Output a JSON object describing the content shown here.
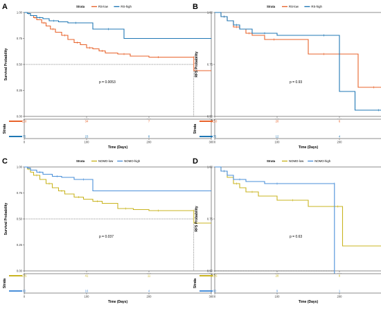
{
  "chart_data": [
    {
      "type": "line",
      "panel_label": "A",
      "legend_title": "Strata",
      "xlabel": "Time (Days)",
      "ylabel": "Survival Probability",
      "xlim": [
        0,
        300
      ],
      "ylim": [
        0,
        1
      ],
      "xticks": [
        "0",
        "100",
        "200",
        "300"
      ],
      "yticks": [
        "0.00",
        "0.25",
        "0.50",
        "0.75",
        "1.00"
      ],
      "p_value": "p = 0.0053",
      "median_time": 272,
      "series": [
        {
          "name": "RS-low",
          "color": "#e8632b",
          "x": [
            0,
            5,
            10,
            15,
            20,
            28,
            35,
            42,
            50,
            60,
            70,
            80,
            90,
            100,
            110,
            120,
            130,
            150,
            170,
            200,
            230,
            272,
            272,
            300
          ],
          "y": [
            1.0,
            0.99,
            0.97,
            0.95,
            0.93,
            0.9,
            0.87,
            0.84,
            0.81,
            0.78,
            0.74,
            0.71,
            0.69,
            0.66,
            0.65,
            0.63,
            0.61,
            0.6,
            0.58,
            0.57,
            0.57,
            0.57,
            0.44,
            0.44
          ]
        },
        {
          "name": "RS-high",
          "color": "#1f77b4",
          "x": [
            0,
            5,
            10,
            20,
            30,
            40,
            55,
            70,
            95,
            110,
            160,
            300
          ],
          "y": [
            1.0,
            0.99,
            0.97,
            0.95,
            0.94,
            0.92,
            0.91,
            0.9,
            0.9,
            0.84,
            0.75,
            0.75
          ]
        }
      ],
      "risk_table": {
        "title": "Strata",
        "rows": [
          {
            "color": "#e8632b",
            "counts": [
              "110",
              "34",
              "7",
              "1"
            ]
          },
          {
            "color": "#1f77b4",
            "counts": [
              "75",
              "23",
              "8",
              "1"
            ]
          }
        ]
      }
    },
    {
      "type": "line",
      "panel_label": "B",
      "legend_title": "Strata",
      "xlabel": "Time (Days)",
      "ylabel": "RFS Probability",
      "xlim": [
        0,
        300
      ],
      "ylim": [
        0.5,
        1
      ],
      "xticks": [
        "0",
        "100",
        "200",
        "300"
      ],
      "yticks": [
        "0.50",
        "0.75",
        "1.00"
      ],
      "p_value": "p = 0.93",
      "series": [
        {
          "name": "RS-low",
          "color": "#e8632b",
          "x": [
            0,
            10,
            20,
            30,
            40,
            50,
            60,
            80,
            110,
            150,
            200,
            230,
            280
          ],
          "y": [
            1.0,
            0.98,
            0.96,
            0.93,
            0.92,
            0.9,
            0.89,
            0.87,
            0.87,
            0.8,
            0.8,
            0.64,
            0.64
          ]
        },
        {
          "name": "RS-high",
          "color": "#1f77b4",
          "x": [
            0,
            10,
            20,
            30,
            40,
            60,
            100,
            150,
            200,
            225,
            300
          ],
          "y": [
            1.0,
            0.98,
            0.96,
            0.94,
            0.92,
            0.9,
            0.89,
            0.89,
            0.62,
            0.53,
            0.53
          ]
        }
      ],
      "risk_table": {
        "title": "Strata",
        "rows": [
          {
            "color": "#e8632b",
            "counts": [
              "110",
              "20",
              "6",
              "0"
            ]
          },
          {
            "color": "#1f77b4",
            "counts": [
              "75",
              "12",
              "4",
              "0"
            ]
          }
        ]
      }
    },
    {
      "type": "line",
      "panel_label": "C",
      "legend_title": "Strata",
      "xlabel": "Time (Days)",
      "ylabel": "Survival Probability",
      "xlim": [
        0,
        300
      ],
      "ylim": [
        0,
        1
      ],
      "xticks": [
        "0",
        "100",
        "200",
        "300"
      ],
      "yticks": [
        "0.00",
        "0.25",
        "0.50",
        "0.75",
        "1.00"
      ],
      "p_value": "p = 0.037",
      "median_time": 272,
      "series": [
        {
          "name": "NOMO-low",
          "color": "#c9b420",
          "x": [
            0,
            5,
            10,
            15,
            25,
            35,
            45,
            55,
            65,
            80,
            95,
            110,
            125,
            150,
            175,
            200,
            230,
            272,
            272,
            300
          ],
          "y": [
            1.0,
            0.98,
            0.95,
            0.92,
            0.88,
            0.84,
            0.8,
            0.77,
            0.74,
            0.71,
            0.69,
            0.67,
            0.65,
            0.6,
            0.59,
            0.58,
            0.58,
            0.58,
            0.46,
            0.46
          ]
        },
        {
          "name": "NOMO-high",
          "color": "#4a8fd9",
          "x": [
            0,
            5,
            10,
            20,
            30,
            45,
            60,
            80,
            110,
            300
          ],
          "y": [
            1.0,
            0.99,
            0.97,
            0.95,
            0.93,
            0.91,
            0.9,
            0.88,
            0.77,
            0.77
          ]
        }
      ],
      "risk_table": {
        "title": "Strata",
        "rows": [
          {
            "color": "#c9b420",
            "counts": [
              "125",
              "41",
              "11",
              "1"
            ]
          },
          {
            "color": "#4a8fd9",
            "counts": [
              "60",
              "16",
              "4",
              "1"
            ]
          }
        ]
      }
    },
    {
      "type": "line",
      "panel_label": "D",
      "legend_title": "Strata",
      "xlabel": "Time (Days)",
      "ylabel": "RFS Probability",
      "xlim": [
        0,
        300
      ],
      "ylim": [
        0.5,
        1
      ],
      "xticks": [
        "0",
        "100",
        "200",
        "300"
      ],
      "yticks": [
        "0.50",
        "0.75",
        "1.00"
      ],
      "p_value": "p = 0.63",
      "median_time": 192,
      "series": [
        {
          "name": "NOMO-low",
          "color": "#c9b420",
          "x": [
            0,
            10,
            20,
            30,
            40,
            50,
            70,
            100,
            150,
            190,
            205,
            280
          ],
          "y": [
            1.0,
            0.98,
            0.95,
            0.92,
            0.9,
            0.88,
            0.86,
            0.84,
            0.81,
            0.81,
            0.62,
            0.62
          ]
        },
        {
          "name": "NOMO-high",
          "color": "#4a8fd9",
          "x": [
            0,
            10,
            20,
            30,
            50,
            80,
            120,
            192,
            192,
            300
          ],
          "y": [
            1.0,
            0.98,
            0.96,
            0.94,
            0.93,
            0.92,
            0.92,
            0.92,
            0.46,
            0.46
          ]
        }
      ],
      "risk_table": {
        "title": "Strata",
        "rows": [
          {
            "color": "#c9b420",
            "counts": [
              "125",
              "28",
              "8",
              "0"
            ]
          },
          {
            "color": "#4a8fd9",
            "counts": [
              "60",
              "9",
              "1",
              "0"
            ]
          }
        ]
      }
    }
  ]
}
